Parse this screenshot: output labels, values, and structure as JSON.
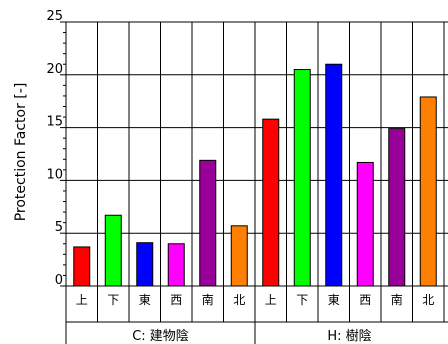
{
  "chart_data": {
    "type": "bar",
    "ylabel": "Protection Factor [-]",
    "ylim": [
      0,
      25
    ],
    "yticks": [
      "0",
      "5",
      "10",
      "15",
      "20",
      "25"
    ],
    "grid": true,
    "groups": [
      {
        "name": "C: 建物陰",
        "categories": [
          "上",
          "下",
          "東",
          "西",
          "南",
          "北"
        ],
        "values": [
          3.7,
          6.7,
          4.1,
          4.0,
          11.9,
          5.7
        ],
        "colors": [
          "#ff0000",
          "#00ff00",
          "#0000ff",
          "#ff00ff",
          "#990099",
          "#ff8000"
        ]
      },
      {
        "name": "H: 樹陰",
        "categories": [
          "上",
          "下",
          "東",
          "西",
          "南",
          "北"
        ],
        "values": [
          15.8,
          20.5,
          21.0,
          11.7,
          14.9,
          17.9
        ],
        "colors": [
          "#ff0000",
          "#00ff00",
          "#0000ff",
          "#ff00ff",
          "#990099",
          "#ff8000"
        ]
      }
    ]
  }
}
